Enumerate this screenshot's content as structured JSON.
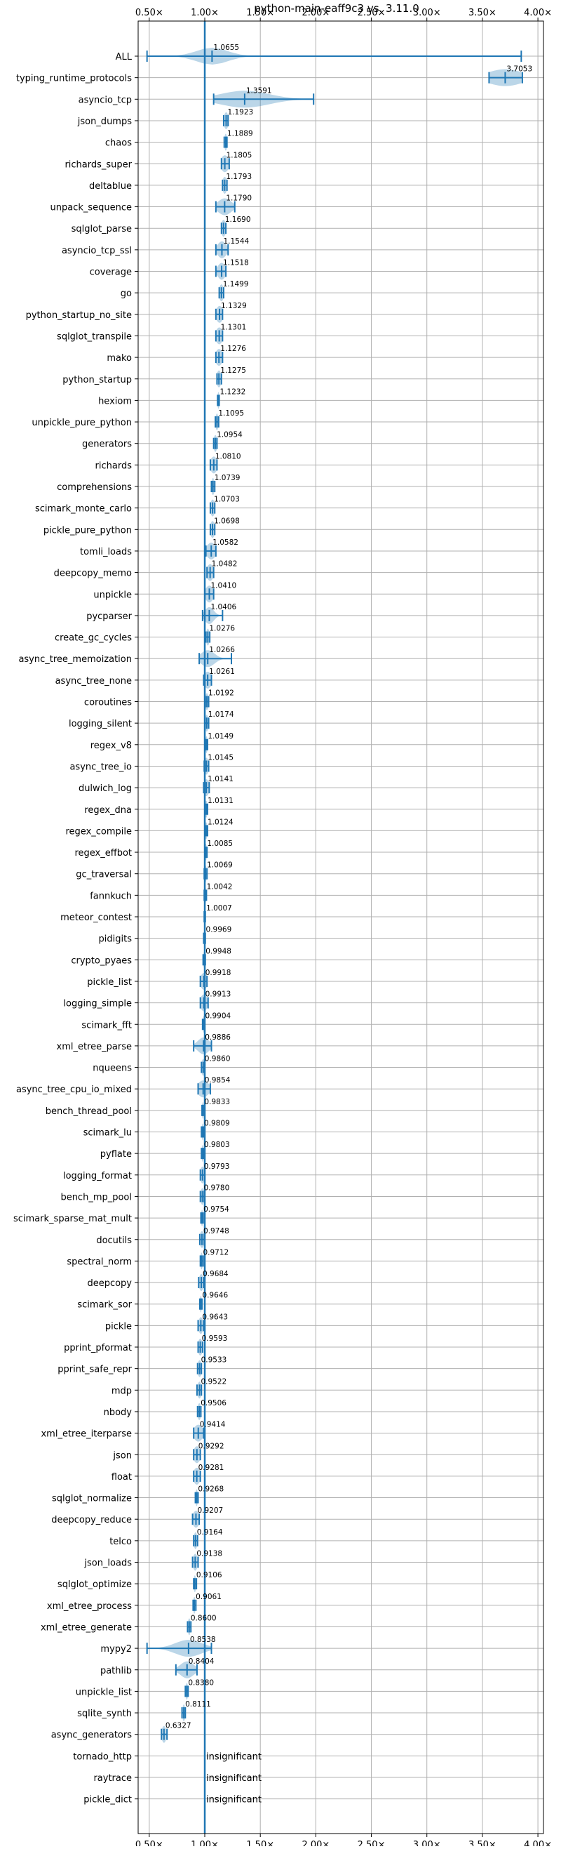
{
  "chart_data": {
    "type": "violin",
    "title": "python-main-eaff9c3 vs. 3.11.0",
    "xlabel": "",
    "ylabel": "",
    "xlim": [
      0.4,
      4.05
    ],
    "reference_line": 1.0,
    "xticks": [
      {
        "value": 0.5,
        "label": "0.50×"
      },
      {
        "value": 1.0,
        "label": "1.00×"
      },
      {
        "value": 1.5,
        "label": "1.50×"
      },
      {
        "value": 2.0,
        "label": "2.00×"
      },
      {
        "value": 2.5,
        "label": "2.50×"
      },
      {
        "value": 3.0,
        "label": "3.00×"
      },
      {
        "value": 3.5,
        "label": "3.50×"
      },
      {
        "value": 4.0,
        "label": "4.00×"
      }
    ],
    "grid": true,
    "colors": {
      "line": "#1f77b4",
      "violin": "#1f77b4",
      "grid": "#b0b0b0"
    },
    "benchmarks": [
      {
        "name": "ALL",
        "label": "1.0655",
        "value": 1.0655,
        "min": 0.48,
        "max": 3.85,
        "spread": 0.14
      },
      {
        "name": "typing_runtime_protocols",
        "label": "3.7053",
        "value": 3.7053,
        "min": 3.56,
        "max": 3.86,
        "spread": 0.16
      },
      {
        "name": "asyncio_tcp",
        "label": "1.3591",
        "value": 1.3591,
        "min": 1.08,
        "max": 1.98,
        "spread": 0.22
      },
      {
        "name": "json_dumps",
        "label": "1.1923",
        "value": 1.1923,
        "min": 1.17,
        "max": 1.21,
        "spread": 0.02
      },
      {
        "name": "chaos",
        "label": "1.1889",
        "value": 1.1889,
        "min": 1.175,
        "max": 1.2,
        "spread": 0.012
      },
      {
        "name": "richards_super",
        "label": "1.1805",
        "value": 1.1805,
        "min": 1.15,
        "max": 1.22,
        "spread": 0.035
      },
      {
        "name": "deltablue",
        "label": "1.1793",
        "value": 1.1793,
        "min": 1.16,
        "max": 1.2,
        "spread": 0.02
      },
      {
        "name": "unpack_sequence",
        "label": "1.1790",
        "value": 1.179,
        "min": 1.1,
        "max": 1.27,
        "spread": 0.06
      },
      {
        "name": "sqlglot_parse",
        "label": "1.1690",
        "value": 1.169,
        "min": 1.15,
        "max": 1.19,
        "spread": 0.02
      },
      {
        "name": "asyncio_tcp_ssl",
        "label": "1.1544",
        "value": 1.1544,
        "min": 1.1,
        "max": 1.21,
        "spread": 0.04
      },
      {
        "name": "coverage",
        "label": "1.1518",
        "value": 1.1518,
        "min": 1.1,
        "max": 1.19,
        "spread": 0.035
      },
      {
        "name": "go",
        "label": "1.1499",
        "value": 1.1499,
        "min": 1.13,
        "max": 1.17,
        "spread": 0.02
      },
      {
        "name": "python_startup_no_site",
        "label": "1.1329",
        "value": 1.1329,
        "min": 1.1,
        "max": 1.16,
        "spread": 0.03
      },
      {
        "name": "sqlglot_transpile",
        "label": "1.1301",
        "value": 1.1301,
        "min": 1.1,
        "max": 1.16,
        "spread": 0.03
      },
      {
        "name": "mako",
        "label": "1.1276",
        "value": 1.1276,
        "min": 1.1,
        "max": 1.16,
        "spread": 0.03
      },
      {
        "name": "python_startup",
        "label": "1.1275",
        "value": 1.1275,
        "min": 1.11,
        "max": 1.15,
        "spread": 0.02
      },
      {
        "name": "hexiom",
        "label": "1.1232",
        "value": 1.1232,
        "min": 1.115,
        "max": 1.13,
        "spread": 0.008
      },
      {
        "name": "unpickle_pure_python",
        "label": "1.1095",
        "value": 1.1095,
        "min": 1.095,
        "max": 1.125,
        "spread": 0.012
      },
      {
        "name": "generators",
        "label": "1.0954",
        "value": 1.0954,
        "min": 1.08,
        "max": 1.11,
        "spread": 0.015
      },
      {
        "name": "richards",
        "label": "1.0810",
        "value": 1.081,
        "min": 1.05,
        "max": 1.11,
        "spread": 0.03
      },
      {
        "name": "comprehensions",
        "label": "1.0739",
        "value": 1.0739,
        "min": 1.06,
        "max": 1.09,
        "spread": 0.015
      },
      {
        "name": "scimark_monte_carlo",
        "label": "1.0703",
        "value": 1.0703,
        "min": 1.05,
        "max": 1.09,
        "spread": 0.02
      },
      {
        "name": "pickle_pure_python",
        "label": "1.0698",
        "value": 1.0698,
        "min": 1.05,
        "max": 1.09,
        "spread": 0.02
      },
      {
        "name": "tomli_loads",
        "label": "1.0582",
        "value": 1.0582,
        "min": 1.01,
        "max": 1.1,
        "spread": 0.04
      },
      {
        "name": "deepcopy_memo",
        "label": "1.0482",
        "value": 1.0482,
        "min": 1.02,
        "max": 1.08,
        "spread": 0.03
      },
      {
        "name": "unpickle",
        "label": "1.0410",
        "value": 1.041,
        "min": 1.0,
        "max": 1.08,
        "spread": 0.035
      },
      {
        "name": "pycparser",
        "label": "1.0406",
        "value": 1.0406,
        "min": 0.98,
        "max": 1.16,
        "spread": 0.04
      },
      {
        "name": "create_gc_cycles",
        "label": "1.0276",
        "value": 1.0276,
        "min": 1.01,
        "max": 1.045,
        "spread": 0.015
      },
      {
        "name": "async_tree_memoization",
        "label": "1.0266",
        "value": 1.0266,
        "min": 0.95,
        "max": 1.24,
        "spread": 0.06
      },
      {
        "name": "async_tree_none",
        "label": "1.0261",
        "value": 1.0261,
        "min": 0.99,
        "max": 1.06,
        "spread": 0.035
      },
      {
        "name": "coroutines",
        "label": "1.0192",
        "value": 1.0192,
        "min": 1.005,
        "max": 1.035,
        "spread": 0.015
      },
      {
        "name": "logging_silent",
        "label": "1.0174",
        "value": 1.0174,
        "min": 1.0,
        "max": 1.035,
        "spread": 0.015
      },
      {
        "name": "regex_v8",
        "label": "1.0149",
        "value": 1.0149,
        "min": 1.005,
        "max": 1.025,
        "spread": 0.01
      },
      {
        "name": "async_tree_io",
        "label": "1.0145",
        "value": 1.0145,
        "min": 0.995,
        "max": 1.035,
        "spread": 0.02
      },
      {
        "name": "dulwich_log",
        "label": "1.0141",
        "value": 1.0141,
        "min": 0.99,
        "max": 1.04,
        "spread": 0.025
      },
      {
        "name": "regex_dna",
        "label": "1.0131",
        "value": 1.0131,
        "min": 1.0,
        "max": 1.025,
        "spread": 0.012
      },
      {
        "name": "regex_compile",
        "label": "1.0124",
        "value": 1.0124,
        "min": 1.0,
        "max": 1.025,
        "spread": 0.012
      },
      {
        "name": "regex_effbot",
        "label": "1.0085",
        "value": 1.0085,
        "min": 1.0,
        "max": 1.02,
        "spread": 0.01
      },
      {
        "name": "gc_traversal",
        "label": "1.0069",
        "value": 1.0069,
        "min": 0.995,
        "max": 1.02,
        "spread": 0.01
      },
      {
        "name": "fannkuch",
        "label": "1.0042",
        "value": 1.0042,
        "min": 0.995,
        "max": 1.015,
        "spread": 0.008
      },
      {
        "name": "meteor_contest",
        "label": "1.0007",
        "value": 1.0007,
        "min": 0.995,
        "max": 1.005,
        "spread": 0.005
      },
      {
        "name": "pidigits",
        "label": "0.9969",
        "value": 0.9969,
        "min": 0.99,
        "max": 1.005,
        "spread": 0.006
      },
      {
        "name": "crypto_pyaes",
        "label": "0.9948",
        "value": 0.9948,
        "min": 0.985,
        "max": 1.005,
        "spread": 0.008
      },
      {
        "name": "pickle_list",
        "label": "0.9918",
        "value": 0.9918,
        "min": 0.96,
        "max": 1.02,
        "spread": 0.03
      },
      {
        "name": "logging_simple",
        "label": "0.9913",
        "value": 0.9913,
        "min": 0.96,
        "max": 1.03,
        "spread": 0.03
      },
      {
        "name": "scimark_fft",
        "label": "0.9904",
        "value": 0.9904,
        "min": 0.98,
        "max": 1.0,
        "spread": 0.008
      },
      {
        "name": "xml_etree_parse",
        "label": "0.9886",
        "value": 0.9886,
        "min": 0.9,
        "max": 1.06,
        "spread": 0.05
      },
      {
        "name": "nqueens",
        "label": "0.9860",
        "value": 0.986,
        "min": 0.97,
        "max": 1.0,
        "spread": 0.015
      },
      {
        "name": "async_tree_cpu_io_mixed",
        "label": "0.9854",
        "value": 0.9854,
        "min": 0.94,
        "max": 1.05,
        "spread": 0.05
      },
      {
        "name": "bench_thread_pool",
        "label": "0.9833",
        "value": 0.9833,
        "min": 0.975,
        "max": 0.995,
        "spread": 0.008
      },
      {
        "name": "scimark_lu",
        "label": "0.9809",
        "value": 0.9809,
        "min": 0.97,
        "max": 0.99,
        "spread": 0.008
      },
      {
        "name": "pyflate",
        "label": "0.9803",
        "value": 0.9803,
        "min": 0.97,
        "max": 0.99,
        "spread": 0.008
      },
      {
        "name": "logging_format",
        "label": "0.9793",
        "value": 0.9793,
        "min": 0.96,
        "max": 1.0,
        "spread": 0.02
      },
      {
        "name": "bench_mp_pool",
        "label": "0.9780",
        "value": 0.978,
        "min": 0.96,
        "max": 0.995,
        "spread": 0.015
      },
      {
        "name": "scimark_sparse_mat_mult",
        "label": "0.9754",
        "value": 0.9754,
        "min": 0.965,
        "max": 0.985,
        "spread": 0.008
      },
      {
        "name": "docutils",
        "label": "0.9748",
        "value": 0.9748,
        "min": 0.955,
        "max": 0.995,
        "spread": 0.02
      },
      {
        "name": "spectral_norm",
        "label": "0.9712",
        "value": 0.9712,
        "min": 0.96,
        "max": 0.985,
        "spread": 0.01
      },
      {
        "name": "deepcopy",
        "label": "0.9684",
        "value": 0.9684,
        "min": 0.945,
        "max": 0.99,
        "spread": 0.02
      },
      {
        "name": "scimark_sor",
        "label": "0.9646",
        "value": 0.9646,
        "min": 0.955,
        "max": 0.975,
        "spread": 0.008
      },
      {
        "name": "pickle",
        "label": "0.9643",
        "value": 0.9643,
        "min": 0.94,
        "max": 0.99,
        "spread": 0.02
      },
      {
        "name": "pprint_pformat",
        "label": "0.9593",
        "value": 0.9593,
        "min": 0.94,
        "max": 0.98,
        "spread": 0.02
      },
      {
        "name": "pprint_safe_repr",
        "label": "0.9533",
        "value": 0.9533,
        "min": 0.935,
        "max": 0.97,
        "spread": 0.018
      },
      {
        "name": "mdp",
        "label": "0.9522",
        "value": 0.9522,
        "min": 0.93,
        "max": 0.97,
        "spread": 0.018
      },
      {
        "name": "nbody",
        "label": "0.9506",
        "value": 0.9506,
        "min": 0.935,
        "max": 0.965,
        "spread": 0.015
      },
      {
        "name": "xml_etree_iterparse",
        "label": "0.9414",
        "value": 0.9414,
        "min": 0.9,
        "max": 0.99,
        "spread": 0.04
      },
      {
        "name": "json",
        "label": "0.9292",
        "value": 0.9292,
        "min": 0.9,
        "max": 0.96,
        "spread": 0.03
      },
      {
        "name": "float",
        "label": "0.9281",
        "value": 0.9281,
        "min": 0.9,
        "max": 0.96,
        "spread": 0.03
      },
      {
        "name": "sqlglot_normalize",
        "label": "0.9268",
        "value": 0.9268,
        "min": 0.915,
        "max": 0.94,
        "spread": 0.01
      },
      {
        "name": "deepcopy_reduce",
        "label": "0.9207",
        "value": 0.9207,
        "min": 0.89,
        "max": 0.95,
        "spread": 0.03
      },
      {
        "name": "telco",
        "label": "0.9164",
        "value": 0.9164,
        "min": 0.9,
        "max": 0.935,
        "spread": 0.015
      },
      {
        "name": "json_loads",
        "label": "0.9138",
        "value": 0.9138,
        "min": 0.89,
        "max": 0.94,
        "spread": 0.02
      },
      {
        "name": "sqlglot_optimize",
        "label": "0.9106",
        "value": 0.9106,
        "min": 0.9,
        "max": 0.925,
        "spread": 0.01
      },
      {
        "name": "xml_etree_process",
        "label": "0.9061",
        "value": 0.9061,
        "min": 0.895,
        "max": 0.92,
        "spread": 0.01
      },
      {
        "name": "xml_etree_generate",
        "label": "0.8600",
        "value": 0.86,
        "min": 0.845,
        "max": 0.875,
        "spread": 0.012
      },
      {
        "name": "mypy2",
        "label": "0.8538",
        "value": 0.8538,
        "min": 0.48,
        "max": 1.06,
        "spread": 0.12
      },
      {
        "name": "pathlib",
        "label": "0.8404",
        "value": 0.8404,
        "min": 0.74,
        "max": 0.93,
        "spread": 0.06
      },
      {
        "name": "unpickle_list",
        "label": "0.8380",
        "value": 0.838,
        "min": 0.825,
        "max": 0.85,
        "spread": 0.01
      },
      {
        "name": "sqlite_synth",
        "label": "0.8111",
        "value": 0.8111,
        "min": 0.795,
        "max": 0.825,
        "spread": 0.012
      },
      {
        "name": "async_generators",
        "label": "0.6327",
        "value": 0.6327,
        "min": 0.61,
        "max": 0.66,
        "spread": 0.02
      },
      {
        "name": "tornado_http",
        "label": "insignificant",
        "value": null
      },
      {
        "name": "raytrace",
        "label": "insignificant",
        "value": null
      },
      {
        "name": "pickle_dict",
        "label": "insignificant",
        "value": null
      }
    ]
  }
}
